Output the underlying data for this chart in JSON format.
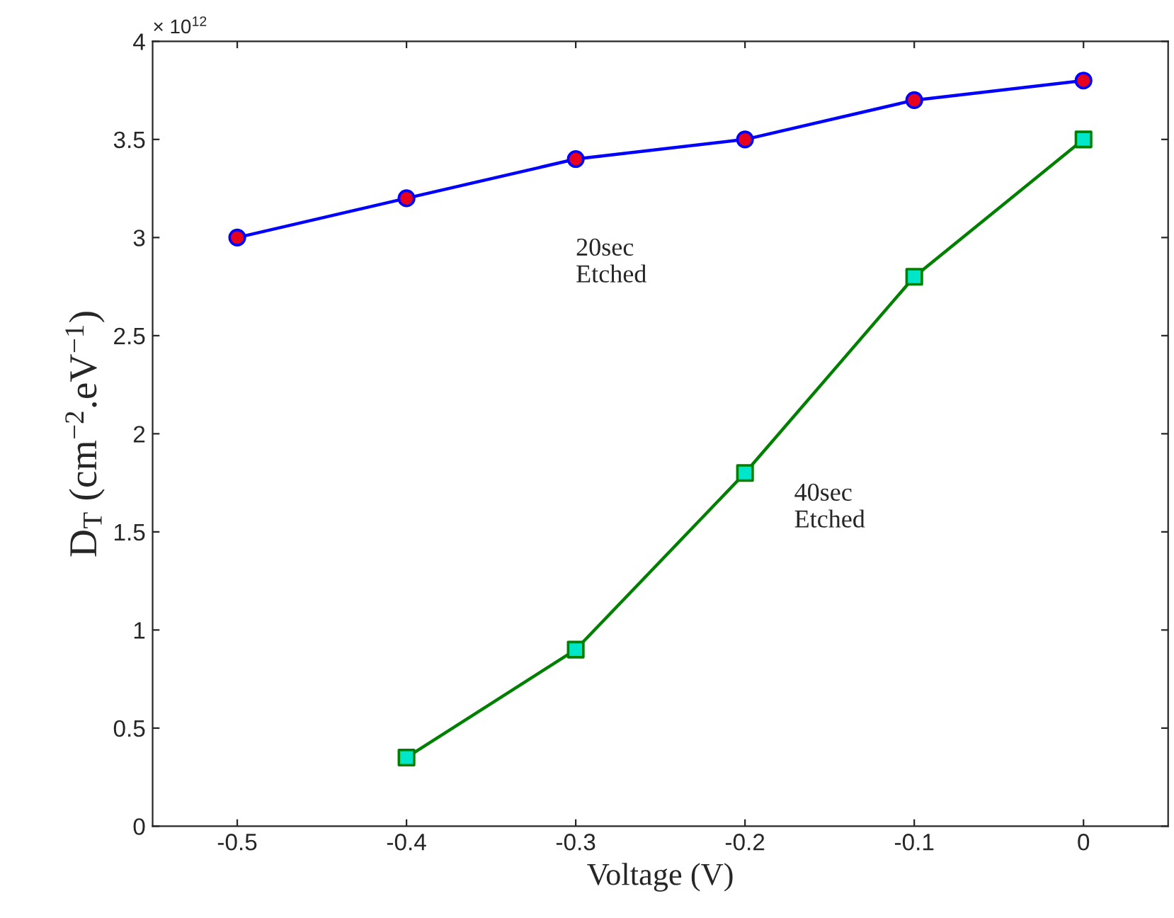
{
  "chart_data": {
    "type": "line",
    "xlabel": "Voltage (V)",
    "ylabel": "D$_{T}$ (cm$^{−2}$.eV$^{−1}$)",
    "annotations": [
      "× 10$^{12}$"
    ],
    "series": [
      {
        "name": "20sec\nEtched",
        "color": "#0000ff",
        "marker": "circle",
        "colors": [
          "#e8001c",
          "#e8001c",
          "#e8001c",
          "#e8001c",
          "#e8001c",
          "#e8001c"
        ],
        "x": [
          -0.5,
          -0.4,
          -0.3,
          -0.2,
          -0.1,
          0
        ],
        "values": [
          3.0,
          3.2,
          3.4,
          3.5,
          3.7,
          3.8
        ]
      },
      {
        "name": "40sec\nEtched",
        "color": "#008000",
        "marker": "square",
        "colors": [
          "#00e6c8",
          "#00e6c8",
          "#00e6c8",
          "#00e6c8",
          "#00e6c8"
        ],
        "x": [
          -0.4,
          -0.3,
          -0.2,
          -0.1,
          0
        ],
        "values": [
          0.35,
          0.9,
          1.8,
          2.8,
          3.5
        ]
      }
    ],
    "xlim": [
      -0.55,
      0.05
    ],
    "xticks": [
      -0.5,
      -0.4,
      -0.3,
      -0.2,
      -0.1,
      0
    ],
    "ylim": [
      0,
      4
    ],
    "yticks": [
      0,
      0.5,
      1,
      1.5,
      2,
      2.5,
      3,
      3.5,
      4
    ],
    "grid": false,
    "legend": false,
    "line_style": "solid"
  }
}
